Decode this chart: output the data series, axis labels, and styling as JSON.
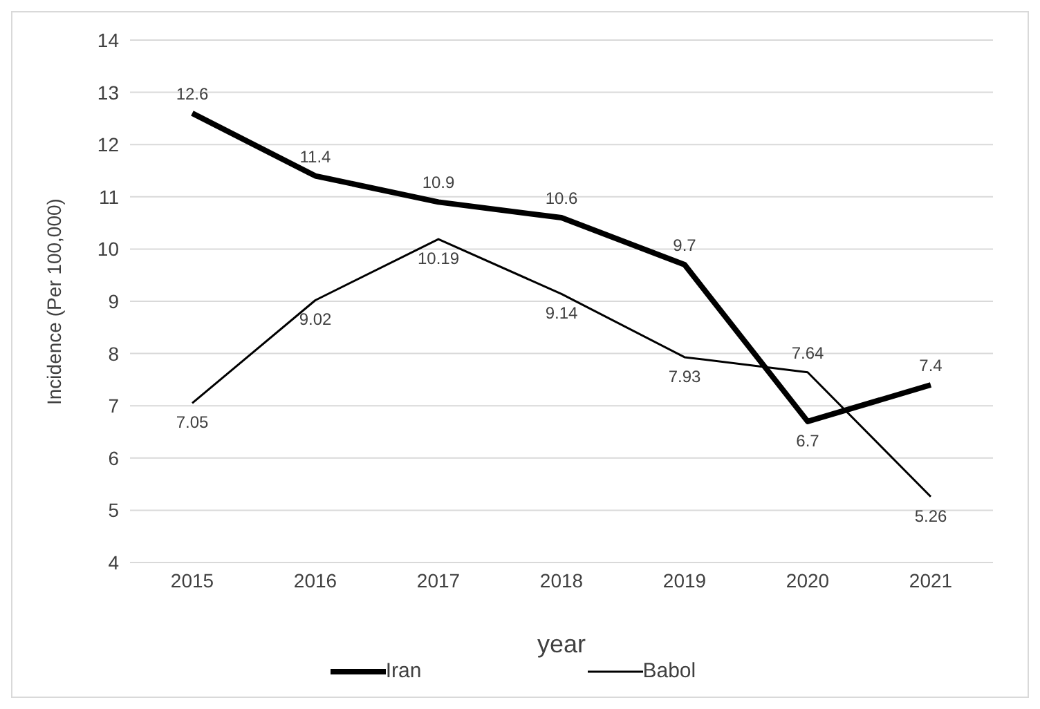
{
  "chart_data": {
    "type": "line",
    "xlabel": "year",
    "ylabel": "Incidence (Per 100,000)",
    "categories": [
      "2015",
      "2016",
      "2017",
      "2018",
      "2019",
      "2020",
      "2021"
    ],
    "series": [
      {
        "name": "Iran",
        "color": "#000000",
        "values": [
          12.6,
          11.4,
          10.9,
          10.6,
          9.7,
          6.7,
          7.4
        ]
      },
      {
        "name": "Babol",
        "color": "#000000",
        "values": [
          7.05,
          9.02,
          10.19,
          9.14,
          7.93,
          7.64,
          5.26
        ]
      }
    ],
    "ylim": [
      4,
      14
    ],
    "yticks": [
      4,
      5,
      6,
      7,
      8,
      9,
      10,
      11,
      12,
      13,
      14
    ],
    "grid": "y",
    "legend": "bottom",
    "data_labels": true,
    "marker": "none",
    "line_style": "solid"
  }
}
